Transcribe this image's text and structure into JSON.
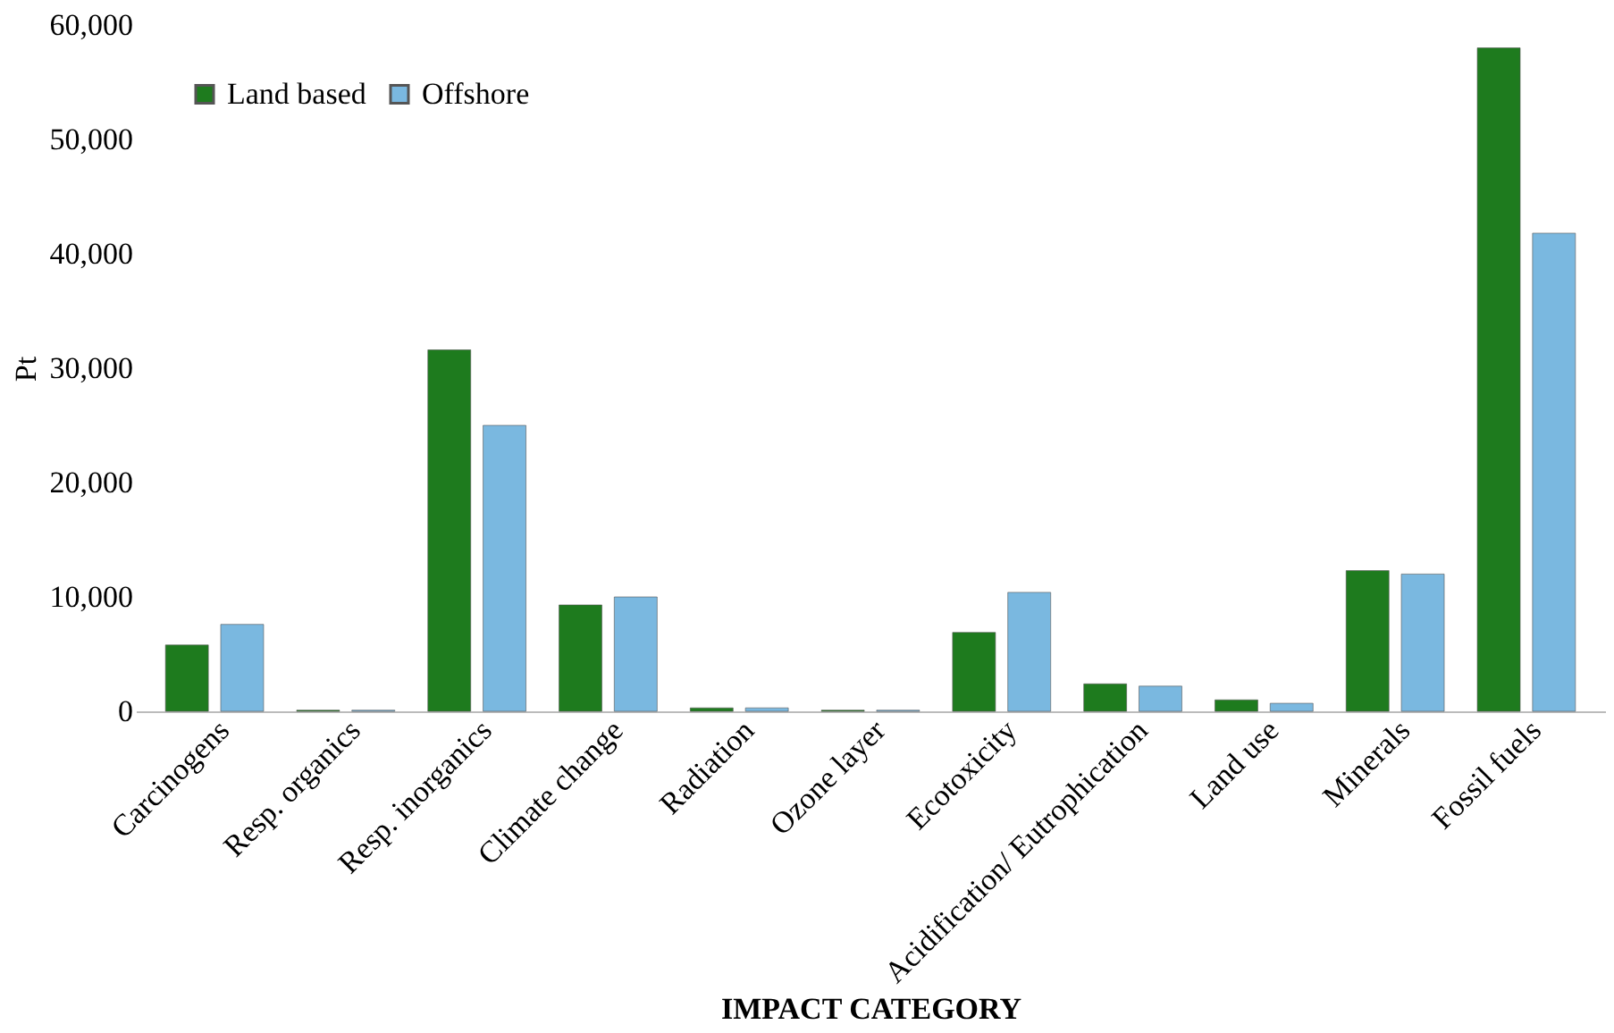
{
  "chart_data": {
    "type": "bar",
    "xlabel": "IMPACT CATEGORY",
    "ylabel": "Pt",
    "categories": [
      "Carcinogens",
      "Resp. organics",
      "Resp. inorganics",
      "Climate change",
      "Radiation",
      "Ozone layer",
      "Ecotoxicity",
      "Acidification/ Eutrophication",
      "Land use",
      "Minerals",
      "Fossil fuels"
    ],
    "series": [
      {
        "name": "Land based",
        "color": "#1e7b1e",
        "values": [
          5800,
          100,
          31600,
          9300,
          300,
          100,
          6900,
          2400,
          1000,
          12300,
          58000
        ]
      },
      {
        "name": "Offshore",
        "color": "#7ab8e0",
        "values": [
          7600,
          100,
          25000,
          10000,
          300,
          100,
          10400,
          2200,
          700,
          12000,
          41800
        ]
      }
    ],
    "ylim": [
      0,
      60000
    ],
    "yticks": [
      {
        "value": 0,
        "label": "0"
      },
      {
        "value": 10000,
        "label": "10,000"
      },
      {
        "value": 20000,
        "label": "20,000"
      },
      {
        "value": 30000,
        "label": "30,000"
      },
      {
        "value": 40000,
        "label": "40,000"
      },
      {
        "value": 50000,
        "label": "50,000"
      },
      {
        "value": 60000,
        "label": "60,000"
      }
    ],
    "grid": false,
    "legend": "top left"
  }
}
